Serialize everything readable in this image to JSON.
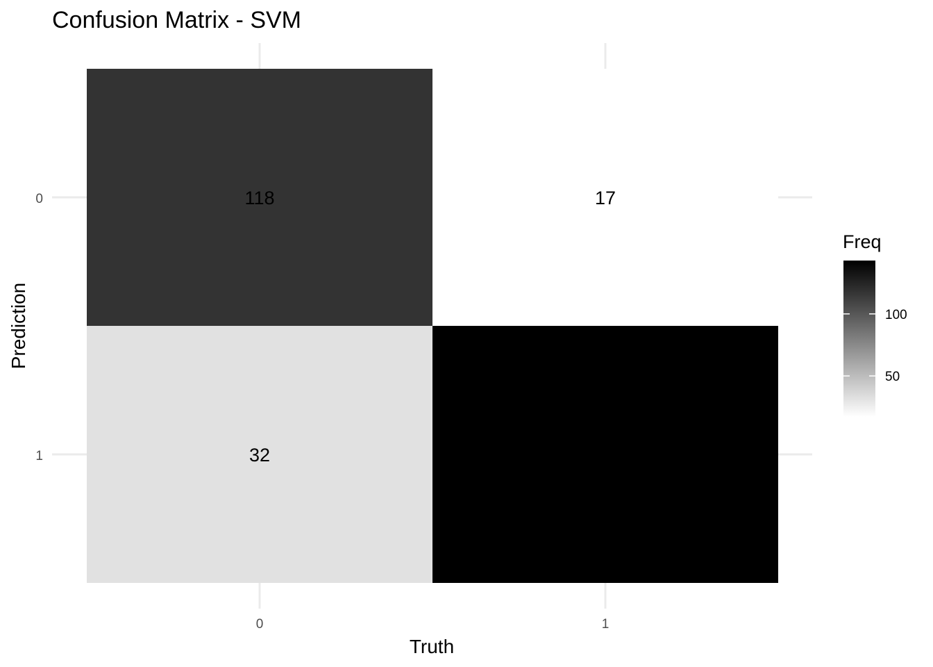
{
  "chart_data": {
    "type": "heatmap",
    "title": "Confusion Matrix - SVM",
    "xlabel": "Truth",
    "ylabel": "Prediction",
    "x_categories": [
      "0",
      "1"
    ],
    "y_categories": [
      "0",
      "1"
    ],
    "cells": [
      {
        "truth": "0",
        "prediction": "0",
        "value": 118,
        "label": "118"
      },
      {
        "truth": "1",
        "prediction": "0",
        "value": 17,
        "label": "17"
      },
      {
        "truth": "0",
        "prediction": "1",
        "value": 32,
        "label": "32"
      },
      {
        "truth": "1",
        "prediction": "1",
        "value": 143,
        "label": ""
      }
    ],
    "legend": {
      "title": "Freq",
      "ticks": [
        100,
        50
      ],
      "tick_labels": [
        "100",
        "50"
      ],
      "range": [
        17,
        143
      ],
      "low_color": "#ffffff",
      "high_color": "#000000"
    },
    "grid": true,
    "legend_position": "right"
  }
}
